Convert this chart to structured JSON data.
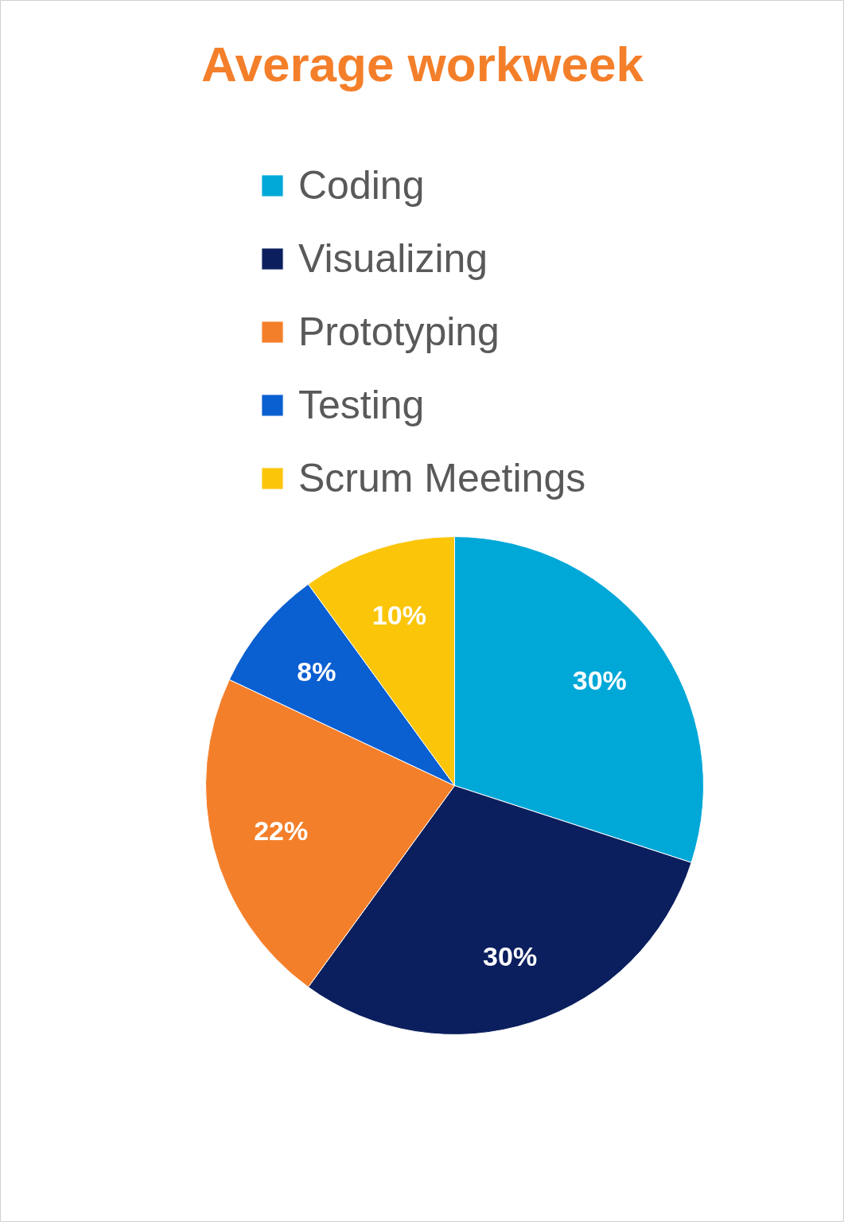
{
  "chart_data": {
    "type": "pie",
    "title": "Average workweek",
    "categories": [
      "Coding",
      "Visualizing",
      "Prototyping",
      "Testing",
      "Scrum Meetings"
    ],
    "values": [
      30,
      30,
      22,
      8,
      10
    ],
    "value_labels": [
      "30%",
      "30%",
      "22%",
      "8%",
      "10%"
    ],
    "colors": [
      "#00a8d8",
      "#0b1f5e",
      "#f47f2a",
      "#0a5fd1",
      "#fbc50a"
    ],
    "legend": "top"
  }
}
